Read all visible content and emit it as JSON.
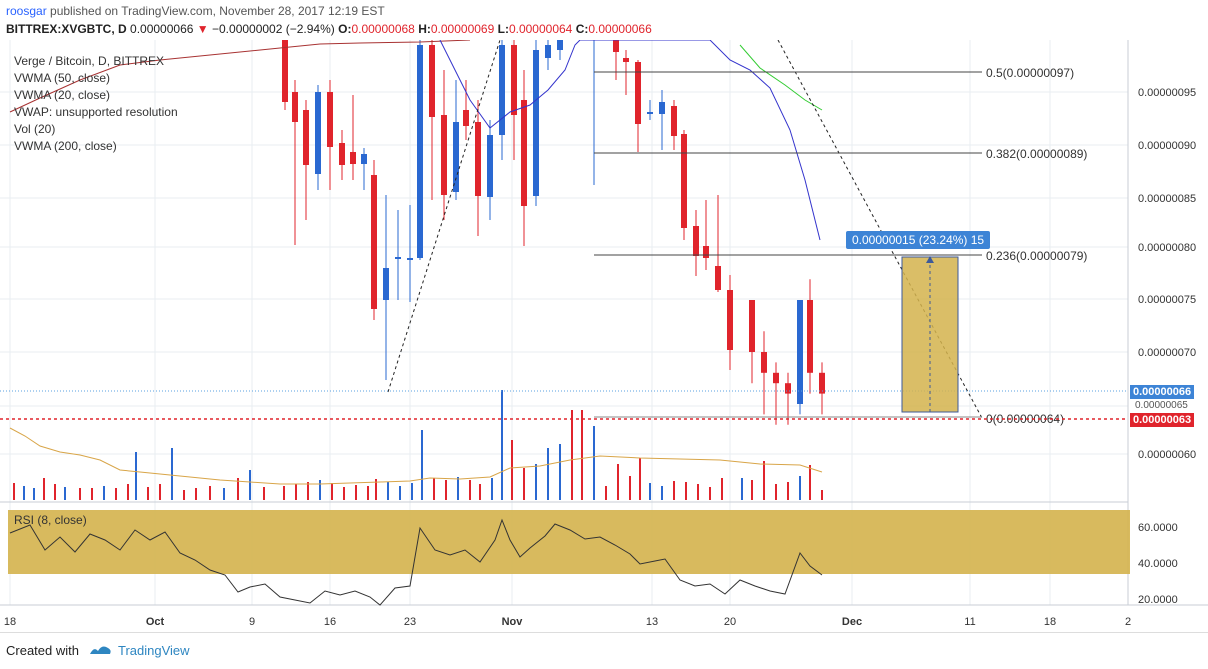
{
  "header": {
    "publisher": "roosgar",
    "published_text": "published on TradingView.com, November 28, 2017 12:19 EST",
    "symbol": "BITTREX:XVGBTC, D",
    "last": "0.00000066",
    "change": "−0.00000002 (−2.94%)",
    "o_label": "O:",
    "o_value": "0.00000068",
    "h_label": "H:",
    "h_value": "0.00000069",
    "l_label": "L:",
    "l_value": "0.00000064",
    "c_label": "C:",
    "c_value": "0.00000066"
  },
  "legend": [
    "Verge / Bitcoin, D, BITTREX",
    "VWMA (50, close)",
    "VWMA (20, close)",
    "VWAP: unsupported resolution",
    "Vol (20)",
    "VWMA (200, close)"
  ],
  "rsi_label": "RSI (8, close)",
  "measure_label": "0.00000015 (23.24%) 15",
  "price_tag_current": "0.00000066",
  "price_tag_small": "0.00000065",
  "price_tag_red": "0.00000063",
  "footer": {
    "created_with": "Created with",
    "brand": "TradingView"
  },
  "colors": {
    "up": "#2a68d1",
    "down": "#e0242c",
    "rsi_band": "#d4b34c",
    "vwma50": "#3333cc",
    "vwma200": "#a83232",
    "vwma20": "#33cc33",
    "volume_ma": "#d8a548"
  },
  "chart_data": {
    "type": "candlestick",
    "x_ticks": [
      "18",
      "Oct",
      "9",
      "16",
      "23",
      "Nov",
      "13",
      "20",
      "Dec",
      "11",
      "18",
      "2"
    ],
    "y_ticks": [
      "0.00000095",
      "0.00000090",
      "0.00000085",
      "0.00000080",
      "0.00000075",
      "0.00000070",
      "0.00000060"
    ],
    "candles_last_days": [
      {
        "o": 7.5e-07,
        "c": 7e-07,
        "h": 7.5e-07,
        "l": 6.7e-07
      },
      {
        "o": 7e-07,
        "c": 6.8e-07,
        "h": 7.2e-07,
        "l": 6.4e-07
      },
      {
        "o": 6.8e-07,
        "c": 6.7e-07,
        "h": 6.9e-07,
        "l": 6.3e-07
      },
      {
        "o": 6.7e-07,
        "c": 6.6e-07,
        "h": 6.8e-07,
        "l": 6.3e-07
      },
      {
        "o": 6.5e-07,
        "c": 7.5e-07,
        "h": 7.5e-07,
        "l": 6.4e-07
      },
      {
        "o": 7.5e-07,
        "c": 6.8e-07,
        "h": 7.7e-07,
        "l": 6.6e-07
      },
      {
        "o": 6.8e-07,
        "c": 6.6e-07,
        "h": 6.9e-07,
        "l": 6.4e-07
      }
    ],
    "fibonacci": [
      {
        "label": "0.5(0.00000097)",
        "value": 9.7e-07
      },
      {
        "label": "0.382(0.00000089)",
        "value": 8.9e-07
      },
      {
        "label": "0.236(0.00000079)",
        "value": 7.9e-07
      },
      {
        "label": "0(0.00000064)",
        "value": 6.4e-07
      }
    ],
    "rsi_ticks": [
      "60.0000",
      "40.0000",
      "20.0000"
    ],
    "rsi_band": [
      35,
      70
    ]
  }
}
